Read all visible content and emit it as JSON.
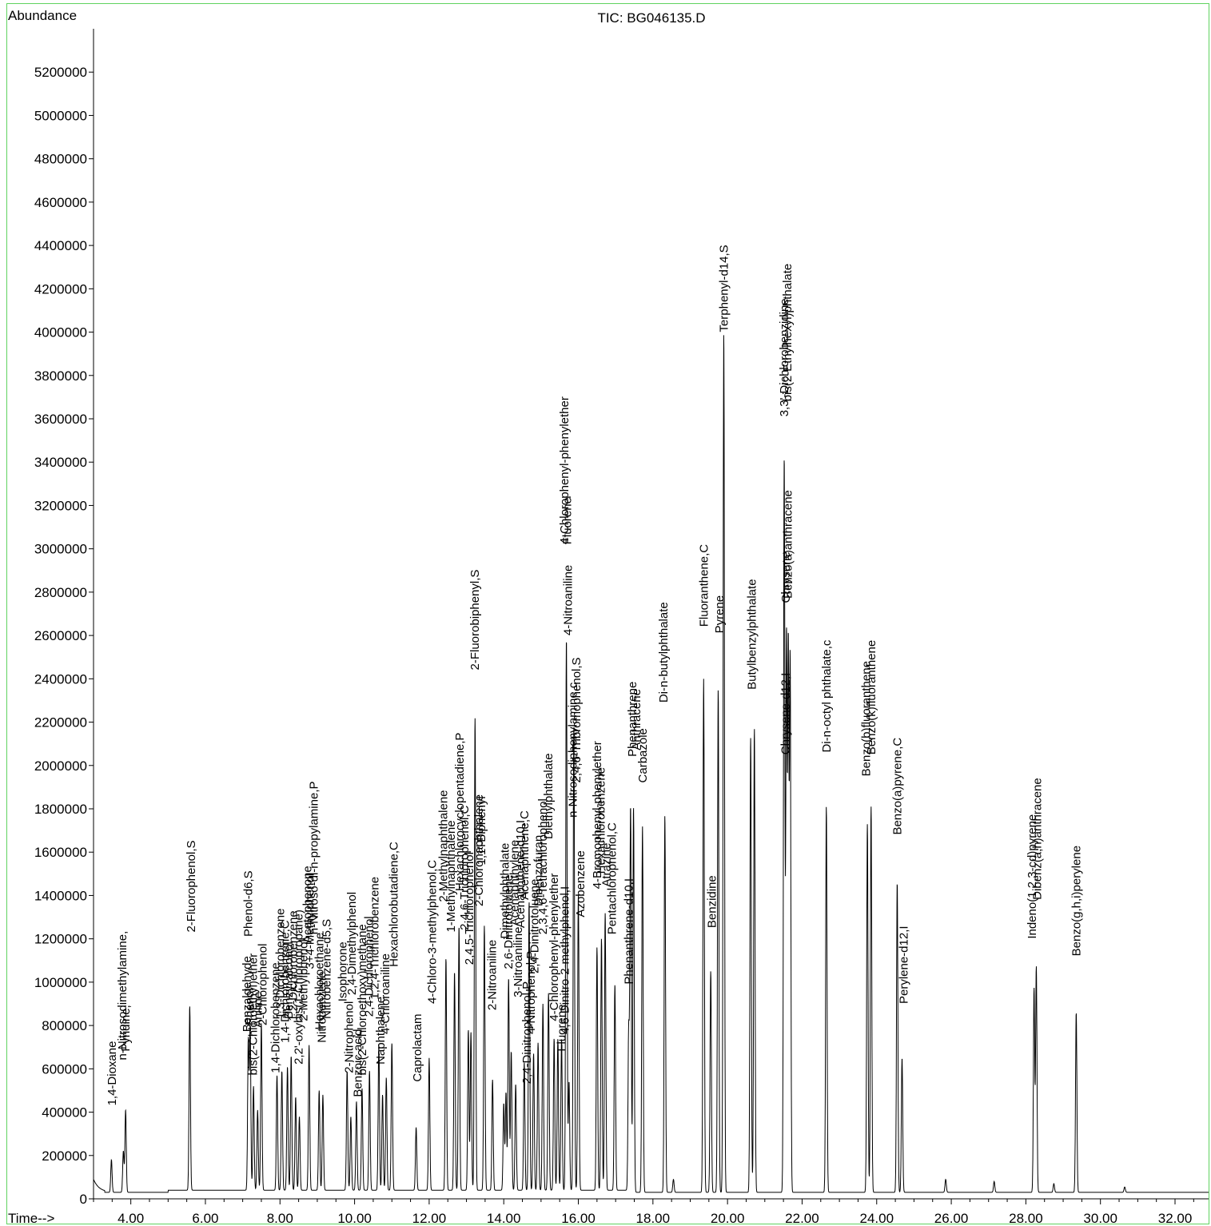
{
  "chart_data": {
    "type": "line",
    "title": "TIC: BG046135.D",
    "ylabel": "Abundance",
    "xlabel": "Time-->",
    "xlim": [
      3.0,
      32.9
    ],
    "ylim": [
      0,
      5400000
    ],
    "x_ticks": [
      {
        "value": 4,
        "label": "4.00"
      },
      {
        "value": 6,
        "label": "6.00"
      },
      {
        "value": 8,
        "label": "8.00"
      },
      {
        "value": 10,
        "label": "10.00"
      },
      {
        "value": 12,
        "label": "12.00"
      },
      {
        "value": 14,
        "label": "14.00"
      },
      {
        "value": 16,
        "label": "16.00"
      },
      {
        "value": 18,
        "label": "18.00"
      },
      {
        "value": 20,
        "label": "20.00"
      },
      {
        "value": 22,
        "label": "22.00"
      },
      {
        "value": 24,
        "label": "24.00"
      },
      {
        "value": 26,
        "label": "26.00"
      },
      {
        "value": 28,
        "label": "28.00"
      },
      {
        "value": 30,
        "label": "30.00"
      },
      {
        "value": 32,
        "label": "32.00"
      }
    ],
    "y_ticks": [
      {
        "value": 0,
        "label": "0"
      },
      {
        "value": 200000,
        "label": "200000"
      },
      {
        "value": 400000,
        "label": "400000"
      },
      {
        "value": 600000,
        "label": "600000"
      },
      {
        "value": 800000,
        "label": "800000"
      },
      {
        "value": 1000000,
        "label": "1000000"
      },
      {
        "value": 1200000,
        "label": "1200000"
      },
      {
        "value": 1400000,
        "label": "1400000"
      },
      {
        "value": 1600000,
        "label": "1600000"
      },
      {
        "value": 1800000,
        "label": "1800000"
      },
      {
        "value": 2000000,
        "label": "2000000"
      },
      {
        "value": 2200000,
        "label": "2200000"
      },
      {
        "value": 2400000,
        "label": "2400000"
      },
      {
        "value": 2600000,
        "label": "2600000"
      },
      {
        "value": 2800000,
        "label": "2800000"
      },
      {
        "value": 3000000,
        "label": "3000000"
      },
      {
        "value": 3200000,
        "label": "3200000"
      },
      {
        "value": 3400000,
        "label": "3400000"
      },
      {
        "value": 3600000,
        "label": "3600000"
      },
      {
        "value": 3800000,
        "label": "3800000"
      },
      {
        "value": 4000000,
        "label": "4000000"
      },
      {
        "value": 4200000,
        "label": "4200000"
      },
      {
        "value": 4400000,
        "label": "4400000"
      },
      {
        "value": 4600000,
        "label": "4600000"
      },
      {
        "value": 4800000,
        "label": "4800000"
      },
      {
        "value": 5000000,
        "label": "5000000"
      },
      {
        "value": 5200000,
        "label": "5200000"
      }
    ],
    "baseline": 30000,
    "grid": false,
    "peaks": [
      {
        "rt": 3.48,
        "height": 180000
      },
      {
        "rt": 3.8,
        "height": 220000
      },
      {
        "rt": 3.86,
        "height": 410000
      },
      {
        "rt": 5.58,
        "height": 880000
      },
      {
        "rt": 7.15,
        "height": 720000
      },
      {
        "rt": 7.2,
        "height": 780000
      },
      {
        "rt": 7.29,
        "height": 510000
      },
      {
        "rt": 7.4,
        "height": 400000
      },
      {
        "rt": 7.5,
        "height": 800000
      },
      {
        "rt": 7.92,
        "height": 560000
      },
      {
        "rt": 8.05,
        "height": 580000
      },
      {
        "rt": 8.2,
        "height": 600000
      },
      {
        "rt": 8.3,
        "height": 650000
      },
      {
        "rt": 8.42,
        "height": 460000
      },
      {
        "rt": 8.52,
        "height": 370000
      },
      {
        "rt": 8.78,
        "height": 700000
      },
      {
        "rt": 9.05,
        "height": 490000
      },
      {
        "rt": 9.15,
        "height": 470000
      },
      {
        "rt": 9.8,
        "height": 580000
      },
      {
        "rt": 9.9,
        "height": 370000
      },
      {
        "rt": 10.05,
        "height": 440000
      },
      {
        "rt": 10.2,
        "height": 500000
      },
      {
        "rt": 10.4,
        "height": 580000
      },
      {
        "rt": 10.65,
        "height": 700000
      },
      {
        "rt": 10.75,
        "height": 470000
      },
      {
        "rt": 10.85,
        "height": 550000
      },
      {
        "rt": 11.0,
        "height": 710000
      },
      {
        "rt": 11.65,
        "height": 320000
      },
      {
        "rt": 12.0,
        "height": 640000
      },
      {
        "rt": 12.45,
        "height": 1100000
      },
      {
        "rt": 12.68,
        "height": 1040000
      },
      {
        "rt": 12.8,
        "height": 1250000
      },
      {
        "rt": 13.05,
        "height": 770000
      },
      {
        "rt": 13.12,
        "height": 760000
      },
      {
        "rt": 13.23,
        "height": 2210000
      },
      {
        "rt": 13.48,
        "height": 1250000
      },
      {
        "rt": 13.7,
        "height": 540000
      },
      {
        "rt": 14.0,
        "height": 430000
      },
      {
        "rt": 14.06,
        "height": 480000
      },
      {
        "rt": 14.13,
        "height": 1010000
      },
      {
        "rt": 14.2,
        "height": 670000
      },
      {
        "rt": 14.32,
        "height": 520000
      },
      {
        "rt": 14.55,
        "height": 620000
      },
      {
        "rt": 14.68,
        "height": 1360000
      },
      {
        "rt": 14.8,
        "height": 660000
      },
      {
        "rt": 14.92,
        "height": 710000
      },
      {
        "rt": 15.05,
        "height": 890000
      },
      {
        "rt": 15.2,
        "height": 940000
      },
      {
        "rt": 15.35,
        "height": 730000
      },
      {
        "rt": 15.45,
        "height": 730000
      },
      {
        "rt": 15.55,
        "height": 730000
      },
      {
        "rt": 15.68,
        "height": 2580000
      },
      {
        "rt": 15.75,
        "height": 530000
      },
      {
        "rt": 15.88,
        "height": 2180000
      },
      {
        "rt": 16.0,
        "height": 1400000
      },
      {
        "rt": 16.5,
        "height": 1150000
      },
      {
        "rt": 16.62,
        "height": 1190000
      },
      {
        "rt": 16.72,
        "height": 1310000
      },
      {
        "rt": 16.98,
        "height": 980000
      },
      {
        "rt": 17.35,
        "height": 770000
      },
      {
        "rt": 17.4,
        "height": 1790000
      },
      {
        "rt": 17.48,
        "height": 1800000
      },
      {
        "rt": 17.72,
        "height": 1720000
      },
      {
        "rt": 18.32,
        "height": 1770000
      },
      {
        "rt": 18.55,
        "height": 90000
      },
      {
        "rt": 19.36,
        "height": 2400000
      },
      {
        "rt": 19.55,
        "height": 1050000
      },
      {
        "rt": 19.75,
        "height": 2350000
      },
      {
        "rt": 19.9,
        "height": 4000000
      },
      {
        "rt": 20.62,
        "height": 2130000
      },
      {
        "rt": 20.72,
        "height": 2170000
      },
      {
        "rt": 21.52,
        "height": 3420000
      },
      {
        "rt": 21.58,
        "height": 2580000
      },
      {
        "rt": 21.63,
        "height": 2520000
      },
      {
        "rt": 21.68,
        "height": 2480000
      },
      {
        "rt": 22.65,
        "height": 1810000
      },
      {
        "rt": 23.75,
        "height": 1730000
      },
      {
        "rt": 23.85,
        "height": 1810000
      },
      {
        "rt": 24.55,
        "height": 1460000
      },
      {
        "rt": 24.68,
        "height": 650000
      },
      {
        "rt": 25.85,
        "height": 90000
      },
      {
        "rt": 27.15,
        "height": 80000
      },
      {
        "rt": 28.22,
        "height": 970000
      },
      {
        "rt": 28.28,
        "height": 1070000
      },
      {
        "rt": 28.75,
        "height": 70000
      },
      {
        "rt": 29.35,
        "height": 860000
      },
      {
        "rt": 30.65,
        "height": 55000
      }
    ],
    "annotations": [
      {
        "rt": 3.49,
        "y": 430000,
        "text": "1,4-Dioxane"
      },
      {
        "rt": 3.77,
        "y": 640000,
        "text": "n-Nitrosodimethylamine,"
      },
      {
        "rt": 3.86,
        "y": 680000,
        "text": "Pyridine,"
      },
      {
        "rt": 5.61,
        "y": 1230000,
        "text": "2-Fluorophenol,S"
      },
      {
        "rt": 7.12,
        "y": 770000,
        "text": "Benzaldehyde"
      },
      {
        "rt": 7.18,
        "y": 800000,
        "text": "Phenol"
      },
      {
        "rt": 7.15,
        "y": 1210000,
        "text": "Phenol-d6,S"
      },
      {
        "rt": 7.28,
        "y": 570000,
        "text": "bis(2-Chloroethyl)ether"
      },
      {
        "rt": 7.4,
        "y": 790000,
        "text": "Aniline"
      },
      {
        "rt": 7.53,
        "y": 800000,
        "text": "2-Chlorophenol"
      },
      {
        "rt": 7.88,
        "y": 580000,
        "text": "1,4-Dichlorobenzene"
      },
      {
        "rt": 8.0,
        "y": 830000,
        "text": "1,3-Dichlorobenzene"
      },
      {
        "rt": 8.13,
        "y": 720000,
        "text": "1,4-Dichlorobenzene,C"
      },
      {
        "rt": 8.23,
        "y": 830000,
        "text": "Benzyl alcohol"
      },
      {
        "rt": 8.35,
        "y": 820000,
        "text": "1,2-Dichlorobenzene"
      },
      {
        "rt": 8.5,
        "y": 620000,
        "text": "2,2'-oxybis(1-Chloropropane)"
      },
      {
        "rt": 8.63,
        "y": 820000,
        "text": "2-Methylphenol"
      },
      {
        "rt": 8.73,
        "y": 1180000,
        "text": "Acetophenone"
      },
      {
        "rt": 8.8,
        "y": 1060000,
        "text": "3+4-Methylphenol"
      },
      {
        "rt": 8.9,
        "y": 1220000,
        "text": "n-Nitroso-di-n-propylamine,P"
      },
      {
        "rt": 9.05,
        "y": 780000,
        "text": "Hexachloroethane"
      },
      {
        "rt": 9.12,
        "y": 720000,
        "text": "Nitrobenzene"
      },
      {
        "rt": 9.25,
        "y": 830000,
        "text": "Nitrobenzene-d5,S"
      },
      {
        "rt": 9.68,
        "y": 910000,
        "text": "Isophorone"
      },
      {
        "rt": 9.85,
        "y": 580000,
        "text": "2-Nitrophenol"
      },
      {
        "rt": 9.92,
        "y": 940000,
        "text": "2,4-Dimethylphenol"
      },
      {
        "rt": 10.08,
        "y": 470000,
        "text": "Benzoic acid"
      },
      {
        "rt": 10.2,
        "y": 570000,
        "text": "bis(2-Chloroethoxy)methane"
      },
      {
        "rt": 10.38,
        "y": 840000,
        "text": "2,4-Dichlorophenol"
      },
      {
        "rt": 10.53,
        "y": 920000,
        "text": "1,2,4-Trichlorobenzene"
      },
      {
        "rt": 10.7,
        "y": 620000,
        "text": "Naphthalene"
      },
      {
        "rt": 10.82,
        "y": 760000,
        "text": "4-Chloroaniline"
      },
      {
        "rt": 11.05,
        "y": 1070000,
        "text": "Hexachlorobutadiene,C"
      },
      {
        "rt": 11.68,
        "y": 540000,
        "text": "Caprolactam"
      },
      {
        "rt": 12.08,
        "y": 900000,
        "text": "4-Chloro-3-methylphenol,C"
      },
      {
        "rt": 12.38,
        "y": 1370000,
        "text": "2-Methylnaphthalene"
      },
      {
        "rt": 12.58,
        "y": 1230000,
        "text": "1-Methylnaphthalene"
      },
      {
        "rt": 12.82,
        "y": 1420000,
        "text": "Hexachlorocyclopentadiene,P"
      },
      {
        "rt": 12.95,
        "y": 1240000,
        "text": "2,4,6-Trichlorophenol,C"
      },
      {
        "rt": 13.07,
        "y": 1080000,
        "text": "2,4,5-Trichlorophenol"
      },
      {
        "rt": 13.22,
        "y": 2440000,
        "text": "2-Fluorobiphenyl,S"
      },
      {
        "rt": 13.33,
        "y": 1350000,
        "text": "2-Chloronaphthalene"
      },
      {
        "rt": 13.4,
        "y": 1540000,
        "text": "1,1'-Biphenyl"
      },
      {
        "rt": 13.68,
        "y": 870000,
        "text": "2-Nitroaniline"
      },
      {
        "rt": 14.03,
        "y": 1200000,
        "text": "Dimethylphthalate"
      },
      {
        "rt": 14.12,
        "y": 1060000,
        "text": "2,6-Dinitrotoluene"
      },
      {
        "rt": 14.28,
        "y": 1260000,
        "text": "Acenaphthylene"
      },
      {
        "rt": 14.38,
        "y": 930000,
        "text": "3-Nitroaniline"
      },
      {
        "rt": 14.45,
        "y": 1250000,
        "text": "Acenaphthene-d10,I"
      },
      {
        "rt": 14.55,
        "y": 1380000,
        "text": "Acenaphthene,C"
      },
      {
        "rt": 14.62,
        "y": 530000,
        "text": "2,4-Dinitrophenol,P"
      },
      {
        "rt": 14.72,
        "y": 760000,
        "text": "4-Nitrophenol,P"
      },
      {
        "rt": 14.82,
        "y": 1040000,
        "text": "2,4-Dinitrotoluene"
      },
      {
        "rt": 14.93,
        "y": 1350000,
        "text": "Dibenzofuran"
      },
      {
        "rt": 15.05,
        "y": 1220000,
        "text": "2,3,4,6-Tetrachlorophenol"
      },
      {
        "rt": 15.2,
        "y": 1660000,
        "text": "Diethylphthalate"
      },
      {
        "rt": 15.35,
        "y": 820000,
        "text": "4-Chlorophenyl-phenylether"
      },
      {
        "rt": 15.55,
        "y": 680000,
        "text": "Fluorene"
      },
      {
        "rt": 15.63,
        "y": 3020000,
        "text": "4-Chlorophenyl-phenylether"
      },
      {
        "rt": 15.7,
        "y": 3020000,
        "text": "Fluorene"
      },
      {
        "rt": 15.72,
        "y": 2600000,
        "text": "4-Nitroaniline"
      },
      {
        "rt": 15.63,
        "y": 760000,
        "text": "4,6-Dinitro-2-methylphenol,I"
      },
      {
        "rt": 15.85,
        "y": 1760000,
        "text": "n-Nitrosodiphenylamine,c"
      },
      {
        "rt": 15.95,
        "y": 1920000,
        "text": "2,4,6-Tribromophenol,S"
      },
      {
        "rt": 16.05,
        "y": 1300000,
        "text": "Azobenzene"
      },
      {
        "rt": 16.5,
        "y": 1430000,
        "text": "4-Bromophenyl-phenylether"
      },
      {
        "rt": 16.6,
        "y": 1500000,
        "text": "Hexachlorobenzene"
      },
      {
        "rt": 16.75,
        "y": 1440000,
        "text": "Atrazine"
      },
      {
        "rt": 16.9,
        "y": 1220000,
        "text": "Pentachlorophenol,C"
      },
      {
        "rt": 17.35,
        "y": 990000,
        "text": "Phenanthrene-d10,I"
      },
      {
        "rt": 17.45,
        "y": 2040000,
        "text": "Phenanthrene"
      },
      {
        "rt": 17.55,
        "y": 2070000,
        "text": "Anthracene"
      },
      {
        "rt": 17.72,
        "y": 1920000,
        "text": "Carbazole"
      },
      {
        "rt": 18.28,
        "y": 2290000,
        "text": "Di-n-butylphthalate"
      },
      {
        "rt": 19.36,
        "y": 2640000,
        "text": "Fluoranthene,C"
      },
      {
        "rt": 19.58,
        "y": 1250000,
        "text": "Benzidine"
      },
      {
        "rt": 19.78,
        "y": 2610000,
        "text": "Pyrene"
      },
      {
        "rt": 19.9,
        "y": 4000000,
        "text": "Terphenyl-d14,S"
      },
      {
        "rt": 20.65,
        "y": 2350000,
        "text": "Butylbenzylphthalate"
      },
      {
        "rt": 21.52,
        "y": 3610000,
        "text": "3,3'-Dichlorobenzidine"
      },
      {
        "rt": 21.6,
        "y": 3680000,
        "text": "bis(2-Ethylhexyl)phthalate"
      },
      {
        "rt": 21.56,
        "y": 2750000,
        "text": "Chrysene"
      },
      {
        "rt": 21.62,
        "y": 2770000,
        "text": "Benzo(a)anthracene"
      },
      {
        "rt": 21.55,
        "y": 2050000,
        "text": "Chrysene-d12,I"
      },
      {
        "rt": 22.65,
        "y": 2060000,
        "text": "Di-n-octyl phthalate,c"
      },
      {
        "rt": 23.72,
        "y": 1950000,
        "text": "Benzo(b)fluoranthene"
      },
      {
        "rt": 23.85,
        "y": 2050000,
        "text": "Benzo(k)fluoranthene"
      },
      {
        "rt": 24.55,
        "y": 1680000,
        "text": "Benzo(a)pyrene,C"
      },
      {
        "rt": 24.72,
        "y": 900000,
        "text": "Perylene-d12,I"
      },
      {
        "rt": 28.16,
        "y": 1200000,
        "text": "Indeno(1,2,3-cd)pyrene"
      },
      {
        "rt": 28.3,
        "y": 1380000,
        "text": "Dibenz(a,h)anthracene"
      },
      {
        "rt": 29.35,
        "y": 1120000,
        "text": "Benzo(g,h,i)perylene"
      }
    ]
  }
}
